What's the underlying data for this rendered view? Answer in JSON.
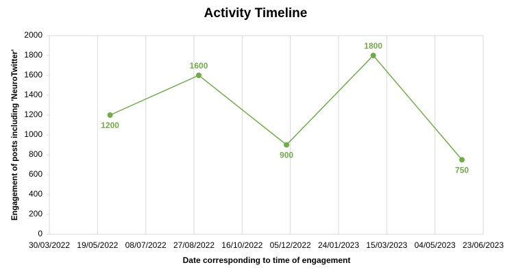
{
  "chart_data": {
    "type": "line",
    "title": "Activity Timeline",
    "x_label": "Date corresponding to time of engagement",
    "y_label": "Engagement of posts including 'NeuroTwitter'",
    "x": [
      "2022-06-01",
      "2022-09-01",
      "2022-12-01",
      "2023-03-01",
      "2023-06-01"
    ],
    "values": [
      1200,
      1600,
      900,
      1800,
      750
    ],
    "color": "#70ad47",
    "xlim": [
      "2022-03-30",
      "2023-06-23"
    ],
    "xticks": [
      {
        "value": "2022-03-30",
        "label": "30/03/2022"
      },
      {
        "value": "2022-05-19",
        "label": "19/05/2022"
      },
      {
        "value": "2022-07-08",
        "label": "08/07/2022"
      },
      {
        "value": "2022-08-27",
        "label": "27/08/2022"
      },
      {
        "value": "2022-10-16",
        "label": "16/10/2022"
      },
      {
        "value": "2022-12-05",
        "label": "05/12/2022"
      },
      {
        "value": "2023-01-24",
        "label": "24/01/2023"
      },
      {
        "value": "2023-03-15",
        "label": "15/03/2023"
      },
      {
        "value": "2023-05-04",
        "label": "04/05/2023"
      },
      {
        "value": "2023-06-23",
        "label": "23/06/2023"
      }
    ],
    "ylim": [
      0,
      2000
    ],
    "yticks": [
      0,
      200,
      400,
      600,
      800,
      1000,
      1200,
      1400,
      1600,
      1800,
      2000
    ],
    "grid": true
  }
}
